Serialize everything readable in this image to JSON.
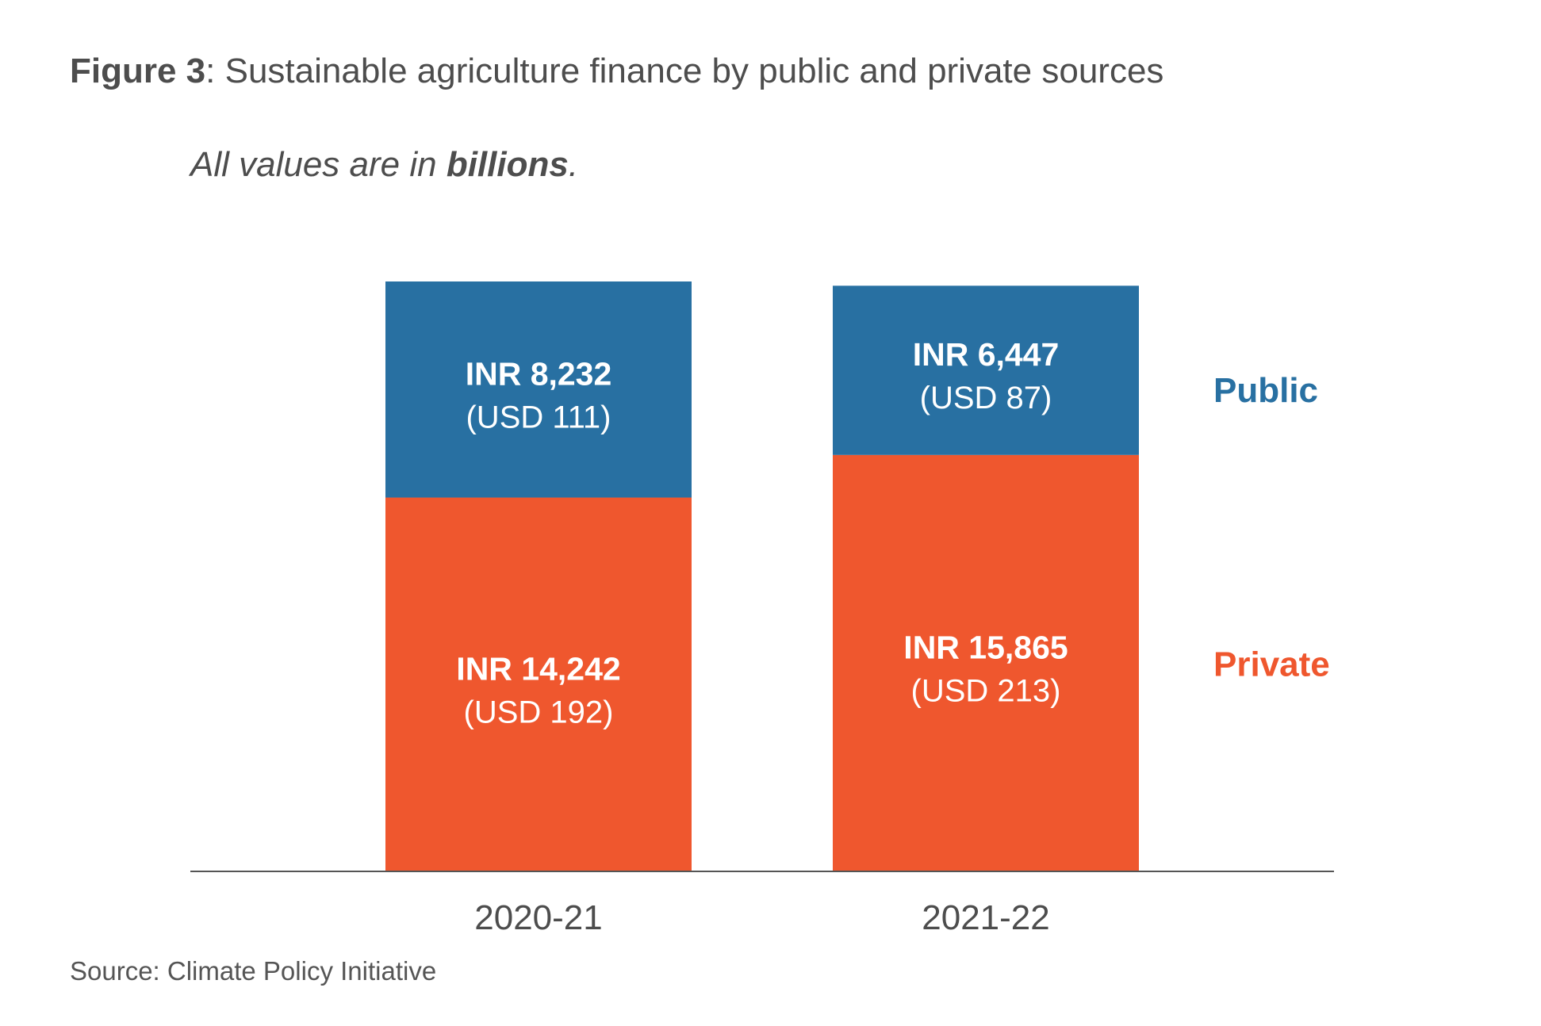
{
  "figure": {
    "title_label": "Figure 3",
    "title_text": ": Sustainable agriculture finance by public and private sources",
    "subtitle_prefix": "All values are in ",
    "subtitle_bold": "billions",
    "subtitle_suffix": ".",
    "source": "Source: Climate Policy Initiative"
  },
  "colors": {
    "public": "#2870a2",
    "private": "#ef572e",
    "axis": "#555555",
    "bar_text": "#ffffff"
  },
  "chart_data": {
    "type": "bar",
    "stacked": true,
    "categories": [
      "2020-21",
      "2021-22"
    ],
    "ylim": [
      0,
      22474
    ],
    "grid": false,
    "legend_position": "right",
    "series": [
      {
        "name": "Private",
        "values": [
          14242,
          15865
        ],
        "labels": [
          "INR 14,242",
          "INR 15,865"
        ],
        "sublabels": [
          "(USD 192)",
          "(USD 213)"
        ]
      },
      {
        "name": "Public",
        "values": [
          8232,
          6447
        ],
        "labels": [
          "INR 8,232",
          "INR 6,447"
        ],
        "sublabels": [
          "(USD 111)",
          "(USD 87)"
        ]
      }
    ]
  }
}
